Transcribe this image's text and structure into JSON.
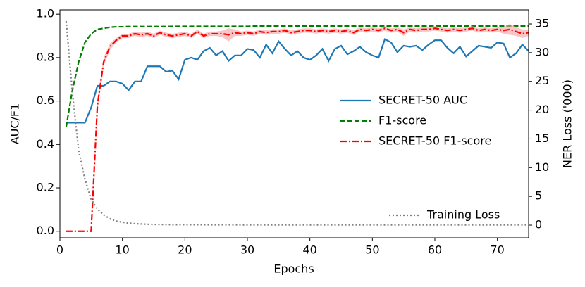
{
  "chart_data": {
    "type": "line",
    "x_label": "Epochs",
    "y_label": "AUC/F1",
    "y2_label": "NER Loss ('000)",
    "x": [
      1,
      2,
      3,
      4,
      5,
      6,
      7,
      8,
      9,
      10,
      11,
      12,
      13,
      14,
      15,
      16,
      17,
      18,
      19,
      20,
      21,
      22,
      23,
      24,
      25,
      26,
      27,
      28,
      29,
      30,
      31,
      32,
      33,
      34,
      35,
      36,
      37,
      38,
      39,
      40,
      41,
      42,
      43,
      44,
      45,
      46,
      47,
      48,
      49,
      50,
      51,
      52,
      53,
      54,
      55,
      56,
      57,
      58,
      59,
      60,
      61,
      62,
      63,
      64,
      65,
      66,
      67,
      68,
      69,
      70,
      71,
      72,
      73,
      74,
      75
    ],
    "xlim": [
      0,
      75
    ],
    "xticks": [
      0,
      10,
      20,
      30,
      40,
      50,
      60,
      70
    ],
    "ylim": [
      -0.03,
      1.02
    ],
    "yticks": [
      {
        "value": 0,
        "label": "0.0"
      },
      {
        "value": 0.2,
        "label": "0.2"
      },
      {
        "value": 0.4,
        "label": "0.4"
      },
      {
        "value": 0.6,
        "label": "0.6"
      },
      {
        "value": 0.8,
        "label": "0.8"
      },
      {
        "value": 1,
        "label": "1.0"
      }
    ],
    "y2lim": [
      -2.2,
      37.45
    ],
    "y2ticks": [
      0,
      5,
      10,
      15,
      20,
      25,
      30,
      35
    ],
    "legend_loc": "center right",
    "y2_legend_loc": "lower right",
    "series": [
      {
        "name": "SECRET-50 AUC",
        "color": "#1f77b4",
        "style": "solid",
        "values": [
          0.5,
          0.5,
          0.5,
          0.5,
          0.57,
          0.67,
          0.67,
          0.69,
          0.69,
          0.68,
          0.65,
          0.69,
          0.69,
          0.76,
          0.76,
          0.76,
          0.735,
          0.74,
          0.7,
          0.79,
          0.8,
          0.79,
          0.83,
          0.845,
          0.81,
          0.83,
          0.785,
          0.81,
          0.81,
          0.84,
          0.835,
          0.8,
          0.86,
          0.82,
          0.875,
          0.84,
          0.81,
          0.83,
          0.8,
          0.79,
          0.81,
          0.84,
          0.785,
          0.84,
          0.855,
          0.815,
          0.83,
          0.85,
          0.825,
          0.81,
          0.8,
          0.885,
          0.87,
          0.825,
          0.855,
          0.85,
          0.855,
          0.835,
          0.86,
          0.88,
          0.88,
          0.845,
          0.82,
          0.85,
          0.805,
          0.83,
          0.855,
          0.85,
          0.845,
          0.87,
          0.865,
          0.8,
          0.82,
          0.86,
          0.83
        ]
      },
      {
        "name": "F1-score",
        "color": "#008000",
        "style": "dashed",
        "values": [
          0.48,
          0.65,
          0.78,
          0.87,
          0.91,
          0.93,
          0.935,
          0.94,
          0.942,
          0.942,
          0.943,
          0.943,
          0.943,
          0.943,
          0.943,
          0.943,
          0.943,
          0.944,
          0.944,
          0.944,
          0.944,
          0.944,
          0.944,
          0.944,
          0.944,
          0.944,
          0.944,
          0.944,
          0.944,
          0.944,
          0.945,
          0.945,
          0.945,
          0.945,
          0.945,
          0.945,
          0.945,
          0.945,
          0.945,
          0.945,
          0.945,
          0.945,
          0.945,
          0.945,
          0.945,
          0.945,
          0.945,
          0.945,
          0.945,
          0.945,
          0.945,
          0.945,
          0.945,
          0.945,
          0.945,
          0.945,
          0.945,
          0.945,
          0.945,
          0.945,
          0.945,
          0.945,
          0.945,
          0.945,
          0.945,
          0.945,
          0.945,
          0.945,
          0.945,
          0.945,
          0.945,
          0.945,
          0.945,
          0.945,
          0.945
        ]
      },
      {
        "name": "SECRET-50 F1-score",
        "color": "#ff0000",
        "band_color": "#f4a0a0",
        "style": "dashdot",
        "values": [
          0,
          0,
          0,
          0,
          0,
          0.58,
          0.78,
          0.85,
          0.88,
          0.9,
          0.9,
          0.91,
          0.905,
          0.91,
          0.9,
          0.915,
          0.905,
          0.9,
          0.905,
          0.91,
          0.9,
          0.92,
          0.9,
          0.91,
          0.91,
          0.91,
          0.905,
          0.915,
          0.91,
          0.915,
          0.91,
          0.92,
          0.915,
          0.92,
          0.92,
          0.925,
          0.915,
          0.92,
          0.925,
          0.925,
          0.92,
          0.925,
          0.92,
          0.925,
          0.92,
          0.925,
          0.915,
          0.93,
          0.925,
          0.93,
          0.925,
          0.935,
          0.925,
          0.93,
          0.915,
          0.93,
          0.925,
          0.93,
          0.93,
          0.935,
          0.93,
          0.925,
          0.93,
          0.925,
          0.93,
          0.935,
          0.925,
          0.93,
          0.925,
          0.93,
          0.925,
          0.93,
          0.92,
          0.91,
          0.915
        ],
        "errors": [
          0,
          0,
          0,
          0,
          0,
          0.02,
          0.02,
          0.015,
          0.01,
          0.01,
          0.01,
          0.01,
          0.01,
          0.01,
          0.01,
          0.01,
          0.01,
          0.01,
          0.01,
          0.01,
          0.01,
          0.01,
          0.01,
          0.01,
          0.01,
          0.015,
          0.03,
          0.015,
          0.01,
          0.01,
          0.01,
          0.01,
          0.01,
          0.01,
          0.01,
          0.01,
          0.01,
          0.01,
          0.01,
          0.01,
          0.01,
          0.01,
          0.01,
          0.01,
          0.01,
          0.01,
          0.01,
          0.01,
          0.01,
          0.01,
          0.01,
          0.01,
          0.01,
          0.01,
          0.015,
          0.01,
          0.01,
          0.01,
          0.01,
          0.01,
          0.01,
          0.01,
          0.01,
          0.01,
          0.01,
          0.01,
          0.01,
          0.01,
          0.01,
          0.01,
          0.015,
          0.025,
          0.02,
          0.02,
          0.015
        ]
      },
      {
        "name": "Training Loss",
        "color": "#808080",
        "style": "dotted",
        "axis": "y2",
        "values": [
          35.5,
          23,
          13,
          8,
          4.5,
          2.8,
          1.8,
          1.1,
          0.7,
          0.5,
          0.35,
          0.25,
          0.2,
          0.15,
          0.12,
          0.1,
          0.1,
          0.08,
          0.08,
          0.08,
          0.07,
          0.07,
          0.07,
          0.06,
          0.06,
          0.06,
          0.06,
          0.06,
          0.05,
          0.05,
          0.05,
          0.05,
          0.05,
          0.05,
          0.05,
          0.05,
          0.05,
          0.05,
          0.05,
          0.05,
          0.05,
          0.05,
          0.05,
          0.05,
          0.05,
          0.05,
          0.05,
          0.05,
          0.05,
          0.05,
          0.05,
          0.05,
          0.05,
          0.05,
          0.05,
          0.05,
          0.05,
          0.05,
          0.05,
          0.05,
          0.05,
          0.05,
          0.05,
          0.05,
          0.05,
          0.05,
          0.05,
          0.05,
          0.05,
          0.05,
          0.05,
          0.05,
          0.05,
          0.05,
          0.05
        ]
      }
    ]
  }
}
